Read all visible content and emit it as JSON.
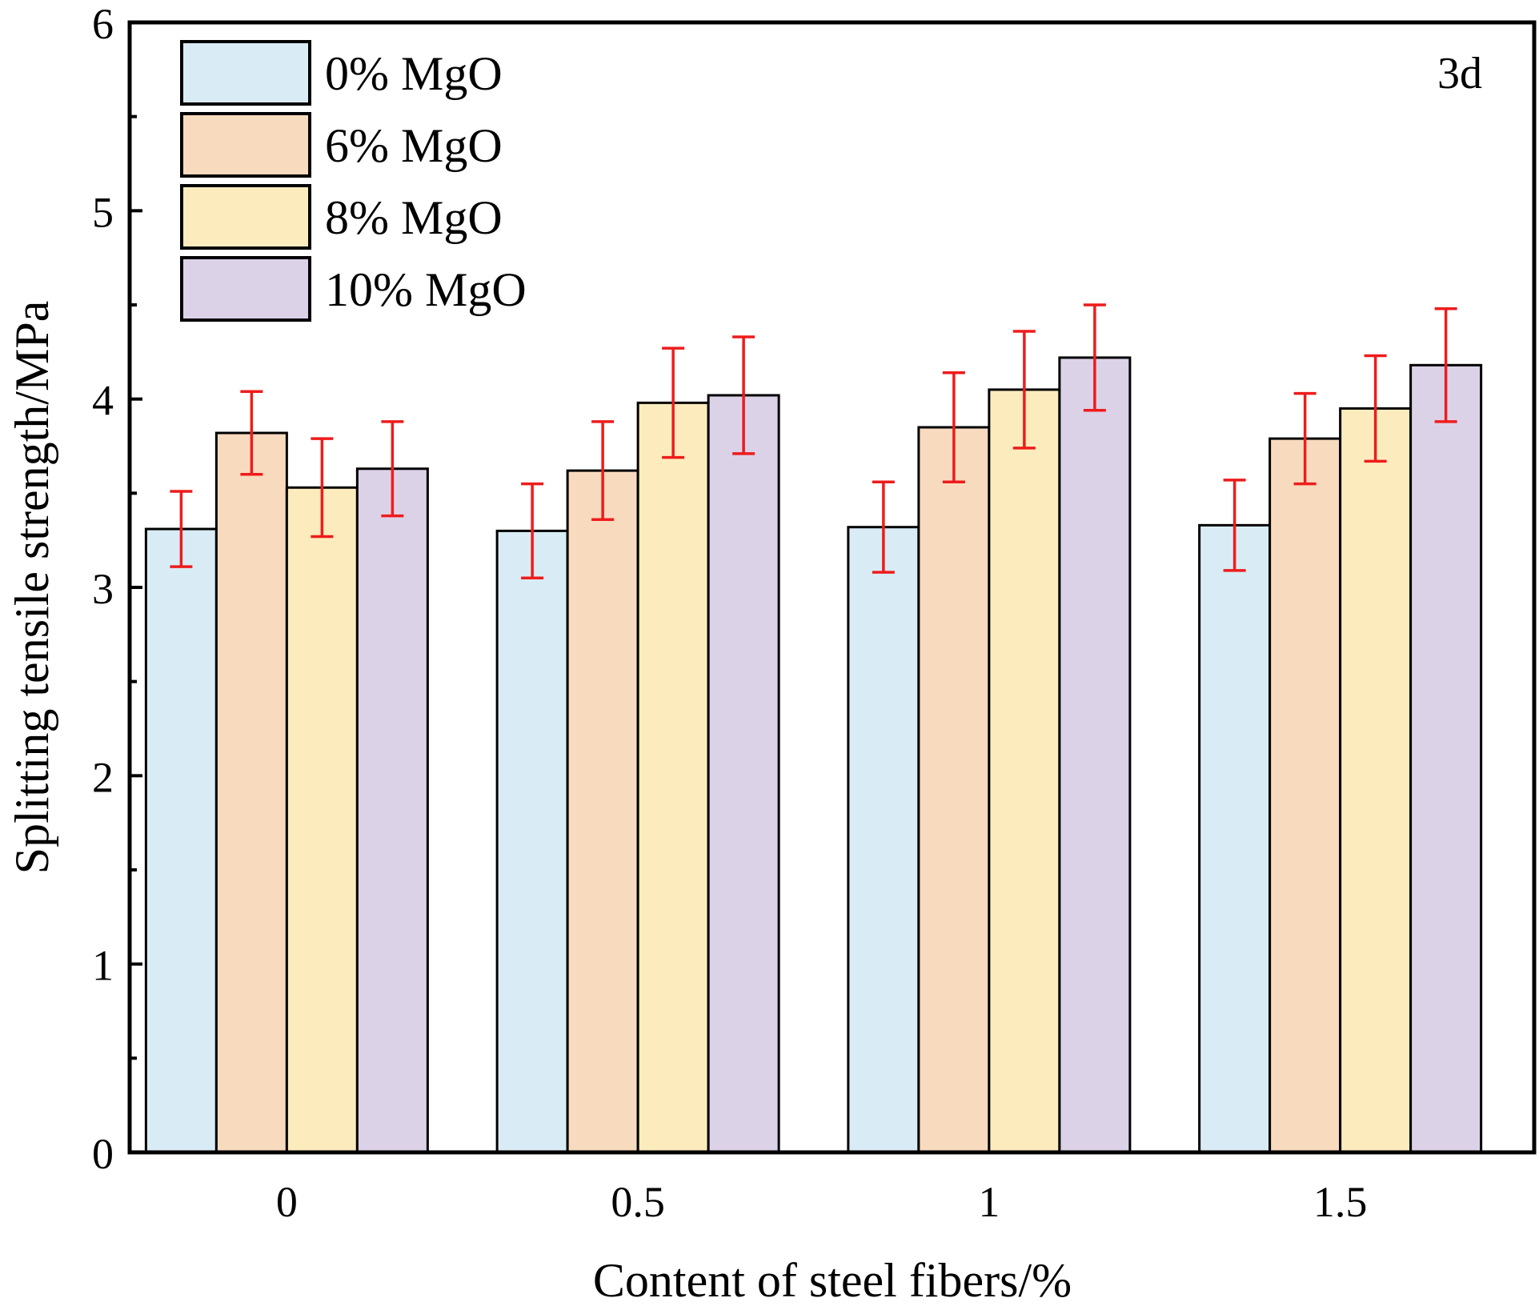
{
  "chart_data": {
    "type": "bar",
    "title": "",
    "annotation": "3d",
    "xlabel": "Content of steel fibers/%",
    "ylabel": "Splitting tensile strength/MPa",
    "categories": [
      "0",
      "0.5",
      "1",
      "1.5"
    ],
    "ylim": [
      0,
      6
    ],
    "yticks": [
      "0",
      "1",
      "2",
      "3",
      "4",
      "5",
      "6"
    ],
    "legend_position": "top-left",
    "grid": false,
    "error_bar_color": "#ee1c1c",
    "series": [
      {
        "name": "0% MgO",
        "color": "#d9ecf5",
        "values": [
          3.31,
          3.3,
          3.32,
          3.33
        ],
        "errors": [
          0.2,
          0.25,
          0.24,
          0.24
        ]
      },
      {
        "name": "6% MgO",
        "color": "#f8dbbf",
        "values": [
          3.82,
          3.62,
          3.85,
          3.79
        ],
        "errors": [
          0.22,
          0.26,
          0.29,
          0.24
        ]
      },
      {
        "name": "8% MgO",
        "color": "#fcecbd",
        "values": [
          3.53,
          3.98,
          4.05,
          3.95
        ],
        "errors": [
          0.26,
          0.29,
          0.31,
          0.28
        ]
      },
      {
        "name": "10% MgO",
        "color": "#dcd2e8",
        "values": [
          3.63,
          4.02,
          4.22,
          4.18
        ],
        "errors": [
          0.25,
          0.31,
          0.28,
          0.3
        ]
      }
    ]
  }
}
